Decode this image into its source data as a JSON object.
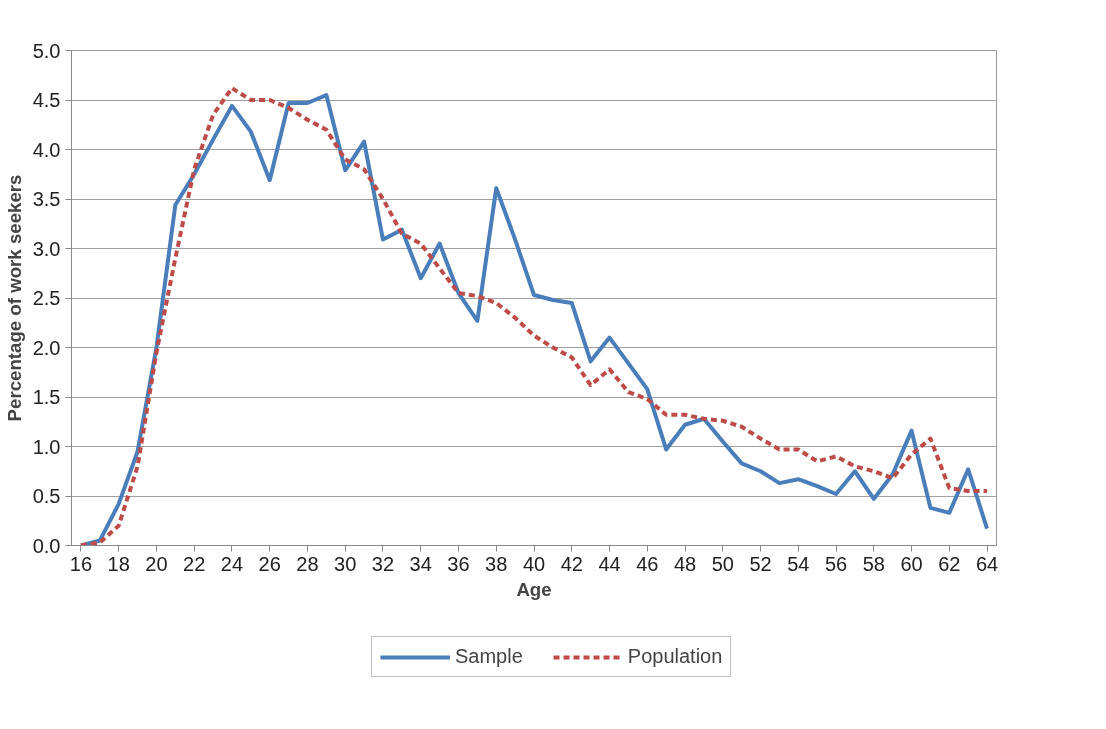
{
  "chart_data": {
    "type": "line",
    "xlabel": "Age",
    "ylabel": "Percentage of work seekers",
    "x": [
      16,
      17,
      18,
      19,
      20,
      21,
      22,
      23,
      24,
      25,
      26,
      27,
      28,
      29,
      30,
      31,
      32,
      33,
      34,
      35,
      36,
      37,
      38,
      39,
      40,
      41,
      42,
      43,
      44,
      45,
      46,
      47,
      48,
      49,
      50,
      51,
      52,
      53,
      54,
      55,
      56,
      57,
      58,
      59,
      60,
      61,
      62,
      63,
      64
    ],
    "series": [
      {
        "name": "Sample",
        "color": "#4a7ebb",
        "line_style": "solid",
        "values": [
          0.0,
          0.05,
          0.42,
          0.95,
          2.0,
          3.44,
          3.75,
          4.1,
          4.44,
          4.18,
          3.69,
          4.47,
          4.47,
          4.55,
          3.79,
          4.08,
          3.09,
          3.19,
          2.7,
          3.05,
          2.55,
          2.27,
          3.61,
          3.09,
          2.53,
          2.48,
          2.45,
          1.86,
          2.1,
          1.84,
          1.58,
          0.97,
          1.22,
          1.28,
          1.05,
          0.83,
          0.75,
          0.63,
          0.67,
          0.6,
          0.52,
          0.75,
          0.47,
          0.72,
          1.16,
          0.38,
          0.33,
          0.77,
          0.17
        ]
      },
      {
        "name": "Population",
        "color": "#be4b48",
        "line_style": "dashed",
        "values": [
          0.0,
          0.03,
          0.2,
          0.8,
          1.95,
          2.9,
          3.8,
          4.35,
          4.62,
          4.5,
          4.5,
          4.42,
          4.3,
          4.2,
          3.9,
          3.8,
          3.5,
          3.15,
          3.05,
          2.8,
          2.55,
          2.52,
          2.45,
          2.3,
          2.12,
          2.0,
          1.9,
          1.62,
          1.78,
          1.55,
          1.48,
          1.32,
          1.32,
          1.28,
          1.26,
          1.2,
          1.08,
          0.97,
          0.97,
          0.85,
          0.9,
          0.8,
          0.75,
          0.68,
          0.92,
          1.08,
          0.58,
          0.55,
          0.55
        ]
      }
    ],
    "xlim": [
      15.5,
      64.5
    ],
    "xticks": [
      16,
      18,
      20,
      22,
      24,
      26,
      28,
      30,
      32,
      34,
      36,
      38,
      40,
      42,
      44,
      46,
      48,
      50,
      52,
      54,
      56,
      58,
      60,
      62,
      64
    ],
    "ylim": [
      0,
      5
    ],
    "yticks": [
      {
        "value": 0,
        "label": "0.0"
      },
      {
        "value": 0.5,
        "label": "0.5"
      },
      {
        "value": 1,
        "label": "1.0"
      },
      {
        "value": 1.5,
        "label": "1.5"
      },
      {
        "value": 2,
        "label": "2.0"
      },
      {
        "value": 2.5,
        "label": "2.5"
      },
      {
        "value": 3,
        "label": "3.0"
      },
      {
        "value": 3.5,
        "label": "3.5"
      },
      {
        "value": 4,
        "label": "4.0"
      },
      {
        "value": 4.5,
        "label": "4.5"
      },
      {
        "value": 5,
        "label": "5.0"
      }
    ],
    "grid": "y",
    "legend": "bottom",
    "marker": "none"
  }
}
